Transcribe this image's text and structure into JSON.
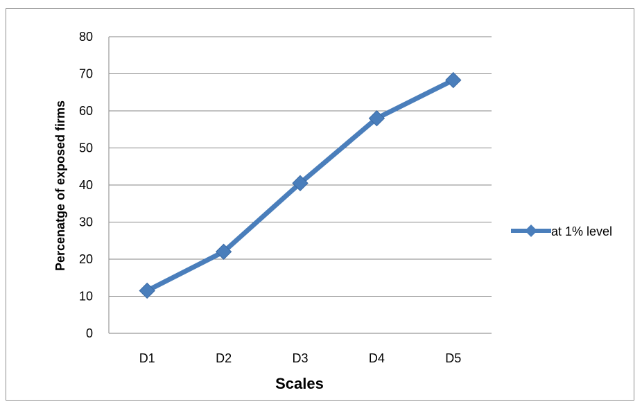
{
  "chart_data": {
    "type": "line",
    "categories": [
      "D1",
      "D2",
      "D3",
      "D4",
      "D5"
    ],
    "series": [
      {
        "name": "at 1% level",
        "values": [
          11.5,
          22,
          40.5,
          58,
          68.3
        ],
        "color": "#4a7ebb"
      }
    ],
    "yticks": [
      "0",
      "10",
      "20",
      "30",
      "40",
      "50",
      "60",
      "70",
      "80"
    ],
    "ylim": [
      0,
      80
    ],
    "xlabel": "Scales",
    "ylabel": "Percenatge of exposed firms",
    "grid": true,
    "legend_position": "right",
    "marker": "diamond"
  }
}
